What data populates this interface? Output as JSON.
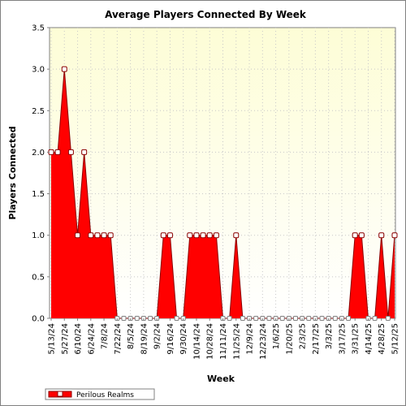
{
  "chart_data": {
    "type": "area",
    "title": "Average Players Connected By Week",
    "xlabel": "Week",
    "ylabel": "Players Connected",
    "ylim": [
      0,
      3.5
    ],
    "yticks": [
      "0.0",
      "0.5",
      "1.0",
      "1.5",
      "2.0",
      "2.5",
      "3.0",
      "3.5"
    ],
    "xtick_labels": [
      "5/13/24",
      "5/27/24",
      "6/10/24",
      "6/24/24",
      "7/8/24",
      "7/22/24",
      "8/5/24",
      "8/19/24",
      "9/2/24",
      "9/16/24",
      "9/30/24",
      "10/14/24",
      "10/28/24",
      "11/11/24",
      "11/25/24",
      "12/9/24",
      "12/23/24",
      "1/6/25",
      "1/20/25",
      "2/3/25",
      "2/17/25",
      "3/3/25",
      "3/17/25",
      "3/31/25",
      "4/14/25",
      "4/28/25",
      "5/12/25"
    ],
    "grid": true,
    "legend_position": "bottom-left",
    "colors": {
      "series": "#ff0000",
      "outline": "#8b0000",
      "plot_bg_top": "#fdfdd6",
      "plot_bg_bottom": "#ffffff"
    },
    "series": [
      {
        "name": "Perilous Realms",
        "x": [
          "5/13/24",
          "5/20/24",
          "5/27/24",
          "6/3/24",
          "6/10/24",
          "6/17/24",
          "6/24/24",
          "7/1/24",
          "7/8/24",
          "7/15/24",
          "7/22/24",
          "7/29/24",
          "8/5/24",
          "8/12/24",
          "8/19/24",
          "8/26/24",
          "9/2/24",
          "9/9/24",
          "9/16/24",
          "9/23/24",
          "9/30/24",
          "10/7/24",
          "10/14/24",
          "10/21/24",
          "10/28/24",
          "11/4/24",
          "11/11/24",
          "11/18/24",
          "11/25/24",
          "12/2/24",
          "12/9/24",
          "12/16/24",
          "12/23/24",
          "12/30/24",
          "1/6/25",
          "1/13/25",
          "1/20/25",
          "1/27/25",
          "2/3/25",
          "2/10/25",
          "2/17/25",
          "2/24/25",
          "3/3/25",
          "3/10/25",
          "3/17/25",
          "3/24/25",
          "3/31/25",
          "4/7/25",
          "4/14/25",
          "4/21/25",
          "4/28/25",
          "5/5/25",
          "5/12/25"
        ],
        "values": [
          2,
          2,
          3,
          2,
          1,
          2,
          1,
          1,
          1,
          1,
          0,
          0,
          0,
          0,
          0,
          0,
          0,
          1,
          1,
          0,
          0,
          1,
          1,
          1,
          1,
          1,
          0,
          0,
          1,
          0,
          0,
          0,
          0,
          0,
          0,
          0,
          0,
          0,
          0,
          0,
          0,
          0,
          0,
          0,
          0,
          0,
          1,
          1,
          0,
          0,
          1,
          0,
          1
        ]
      }
    ]
  }
}
